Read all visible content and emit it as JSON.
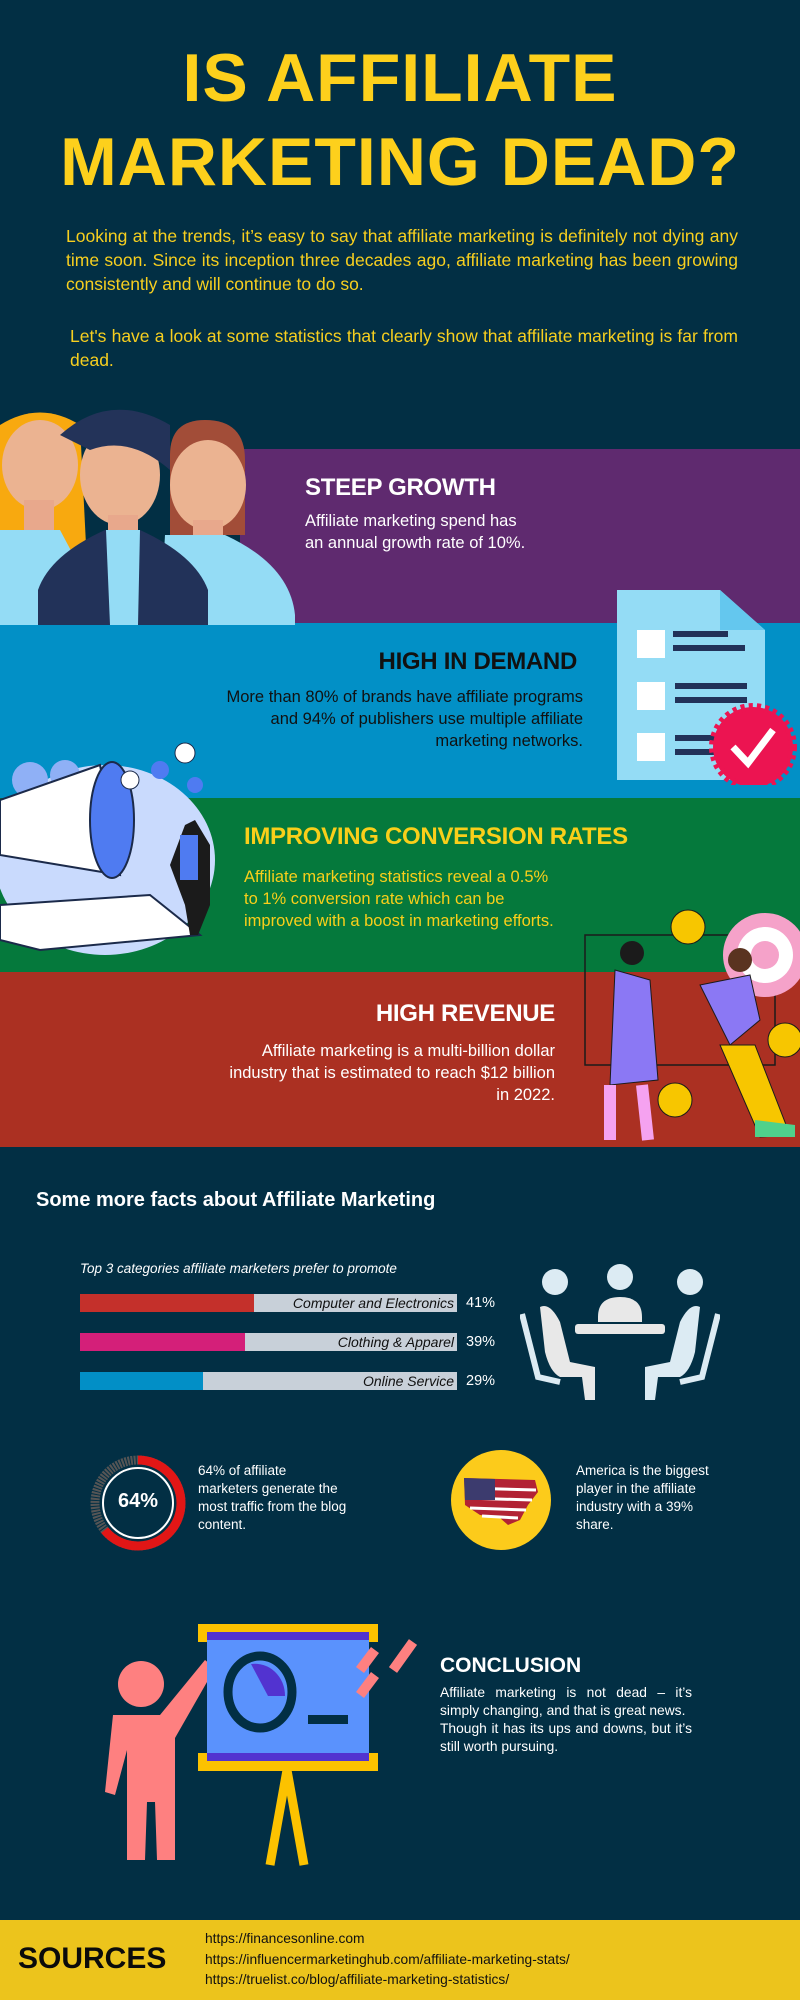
{
  "header": {
    "title_line1": "IS AFFILIATE",
    "title_line2": "MARKETING DEAD?",
    "intro_1": "Looking at the trends, it’s easy to say that affiliate marketing is definitely not dying any time soon. Since its inception three decades ago, affiliate marketing has been growing consistently and will continue to do so.",
    "intro_2": "Let's have a look at some statistics that clearly show that affiliate marketing is far from dead."
  },
  "sections": [
    {
      "title": "STEEP GROWTH",
      "body": "Affiliate marketing spend has an annual growth rate of 10%.",
      "color": "#5f2a6f"
    },
    {
      "title": "HIGH IN DEMAND",
      "body": "More than 80% of brands have affiliate programs and 94% of publishers use multiple affiliate marketing networks.",
      "color": "#0290c6"
    },
    {
      "title": "IMPROVING CONVERSION RATES",
      "body": "Affiliate marketing statistics reveal a 0.5% to 1% conversion rate which can be improved with a boost in marketing efforts.",
      "color": "#05793c"
    },
    {
      "title": "HIGH REVENUE",
      "body": "Affiliate marketing is a multi-billion dollar industry that is estimated to reach $12 billion in 2022.",
      "color": "#ab3022"
    }
  ],
  "facts": {
    "heading": "Some more facts about Affiliate Marketing",
    "blog_stat": "64%",
    "blog_text": "64%  of affiliate marketers generate the most traffic from the blog content.",
    "america_text": "America is the biggest player in the affiliate industry with a 39% share."
  },
  "chart_data": {
    "type": "bar",
    "title": "Top 3 categories affiliate marketers prefer to promote",
    "categories": [
      "Computer and Electronics",
      "Clothing & Apparel",
      "Online Service"
    ],
    "values": [
      41,
      39,
      29
    ],
    "labels": [
      "41%",
      "39%",
      "29%"
    ],
    "colors": [
      "#c4302b",
      "#d41f79",
      "#028fc6"
    ]
  },
  "conclusion": {
    "title": "CONCLUSION",
    "body_1": "Affiliate marketing is not dead – it’s simply changing, and that is great news.",
    "body_2": "Though it has its ups and downs, but it’s still worth pursuing."
  },
  "sources": {
    "title": "SOURCES",
    "links": [
      "https://financesonline.com",
      "https://influencermarketinghub.com/affiliate-marketing-stats/",
      "https://truelist.co/blog/affiliate-marketing-statistics/"
    ]
  }
}
